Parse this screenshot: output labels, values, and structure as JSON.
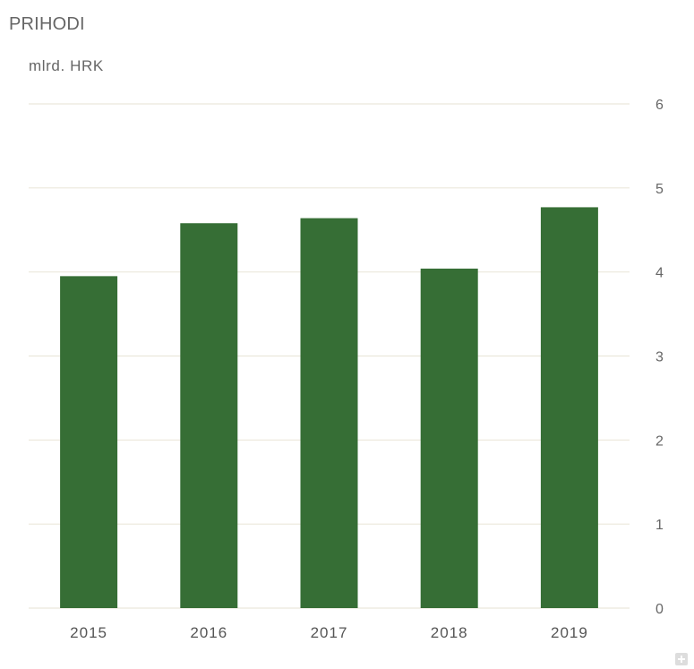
{
  "chart_data": {
    "type": "bar",
    "title": "PRIHODI",
    "unit_label": "mlrd. HRK",
    "categories": [
      "2015",
      "2016",
      "2017",
      "2018",
      "2019"
    ],
    "values": [
      3.95,
      4.58,
      4.64,
      4.04,
      4.77
    ],
    "ylim": [
      0,
      6
    ],
    "yticks": [
      "0",
      "1",
      "2",
      "3",
      "4",
      "5",
      "6"
    ],
    "y_axis_position": "right",
    "grid": true,
    "bar_color": "#366e35",
    "grid_color": "#ebe8dc"
  },
  "controls": {
    "expand_icon": "plus-icon"
  }
}
